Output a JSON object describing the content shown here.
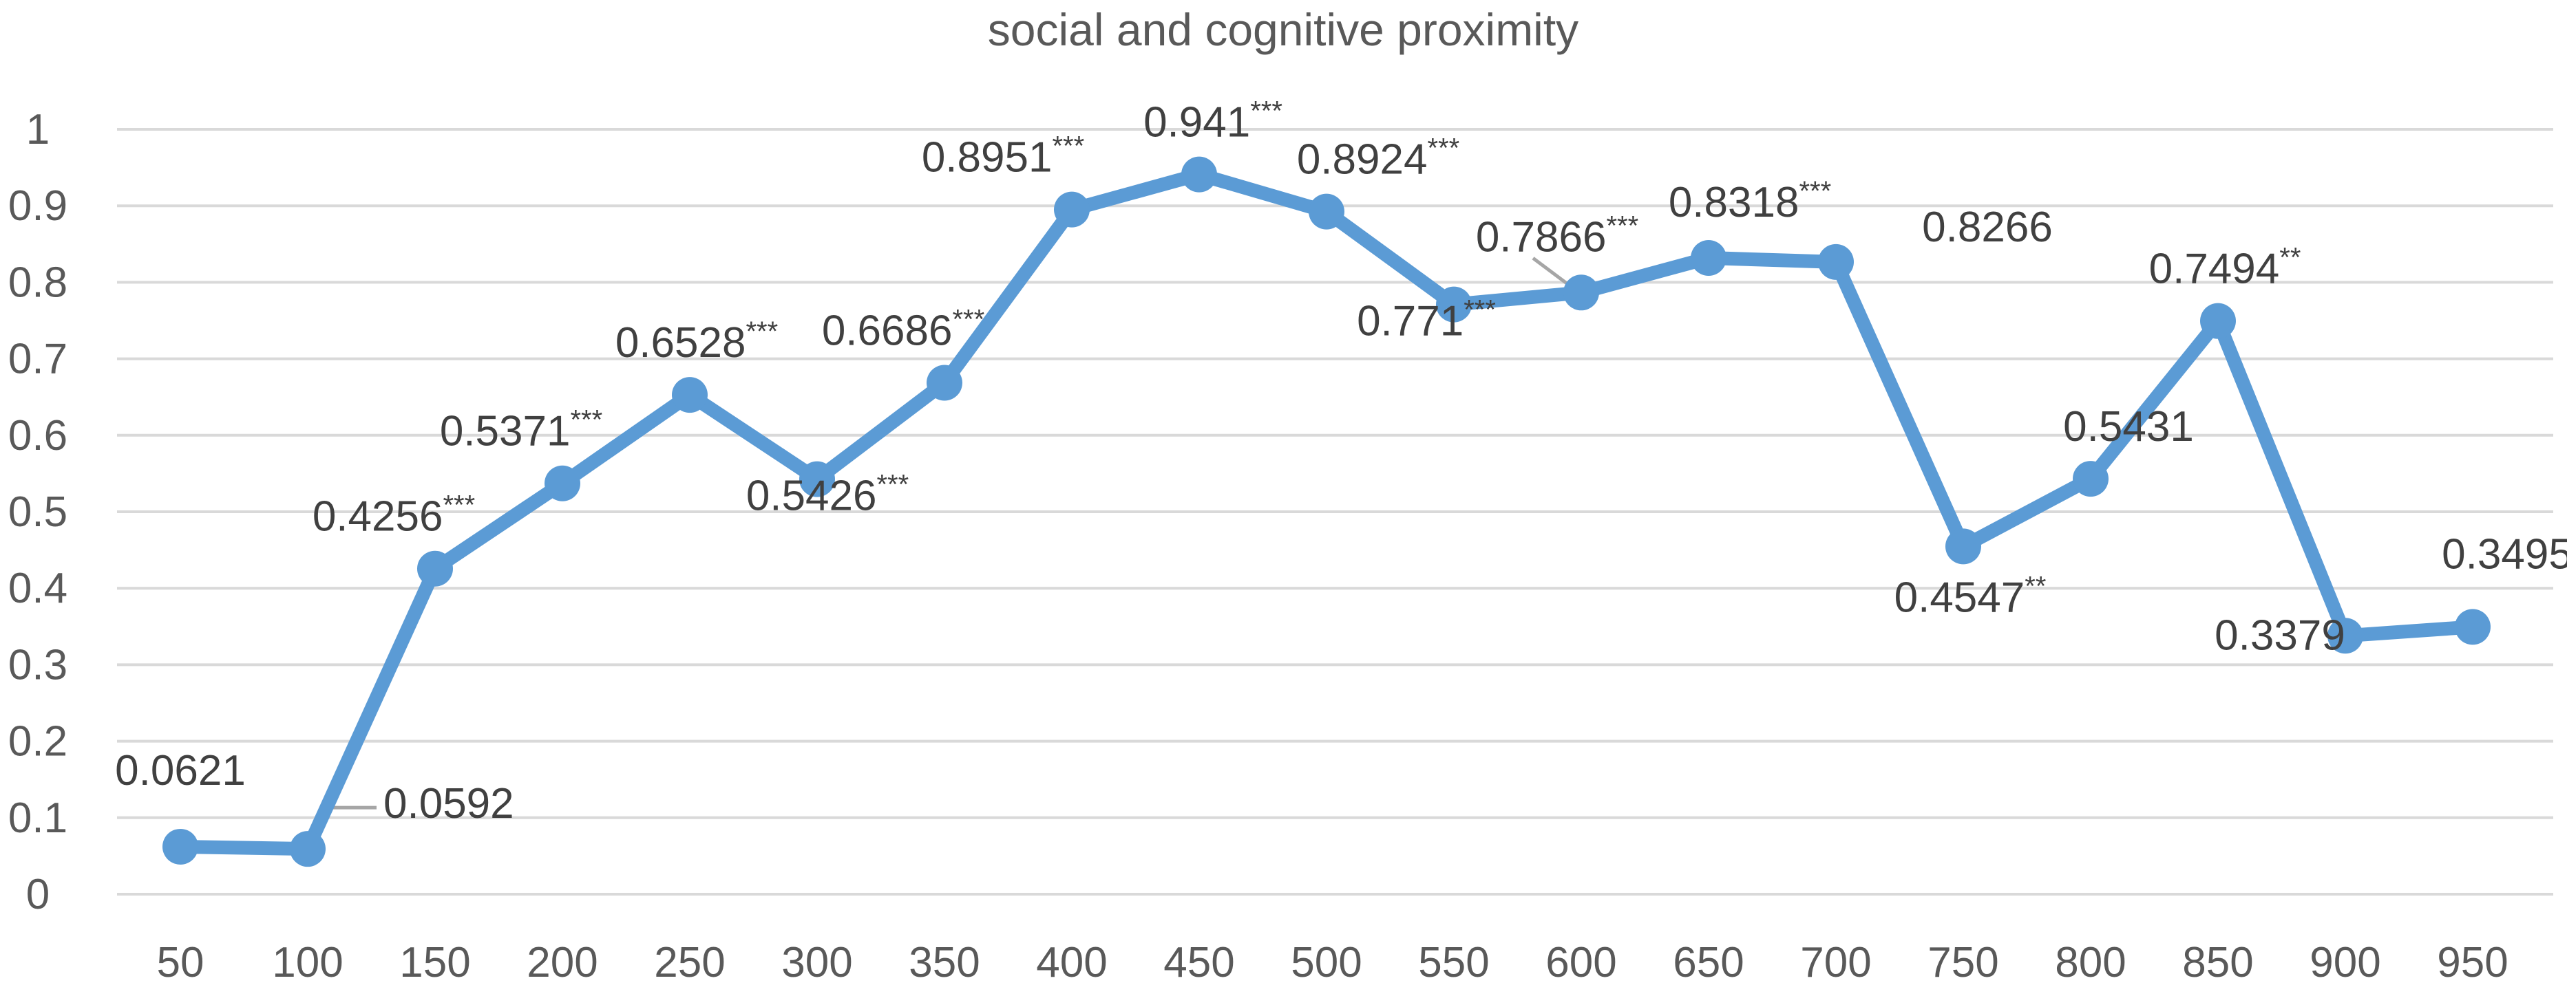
{
  "chart_data": {
    "type": "line",
    "title": "social and cognitive proximity",
    "xlabel": "",
    "ylabel": "",
    "ylim": [
      0,
      1
    ],
    "yticks": [
      "0",
      "0.1",
      "0.2",
      "0.3",
      "0.4",
      "0.5",
      "0.6",
      "0.7",
      "0.8",
      "0.9",
      "1"
    ],
    "grid": true,
    "legend": "none",
    "x": [
      "50",
      "100",
      "150",
      "200",
      "250",
      "300",
      "350",
      "400",
      "450",
      "500",
      "550",
      "600",
      "650",
      "700",
      "750",
      "800",
      "850",
      "900",
      "950"
    ],
    "series": [
      {
        "color": "#5b9bd5",
        "values": [
          0.0621,
          0.0592,
          0.4256,
          0.5371,
          0.6528,
          0.5426,
          0.6686,
          0.8951,
          0.941,
          0.8924,
          0.771,
          0.7866,
          0.8318,
          0.8266,
          0.4547,
          0.5431,
          0.7494,
          0.3379,
          0.3495
        ],
        "data_labels": [
          "0.0621",
          "0.0592",
          "0.4256",
          "0.5371",
          "0.6528",
          "0.5426",
          "0.6686",
          "0.8951",
          "0.941",
          "0.8924",
          "0.771",
          "0.7866",
          "0.8318",
          "0.8266",
          "0.4547",
          "0.5431",
          "0.7494",
          "0.3379",
          "0.3495"
        ],
        "significance": [
          "",
          "",
          "***",
          "***",
          "***",
          "***",
          "***",
          "***",
          "***",
          "***",
          "***",
          "***",
          "***",
          "",
          "**",
          "",
          "**",
          "",
          ""
        ]
      }
    ]
  }
}
